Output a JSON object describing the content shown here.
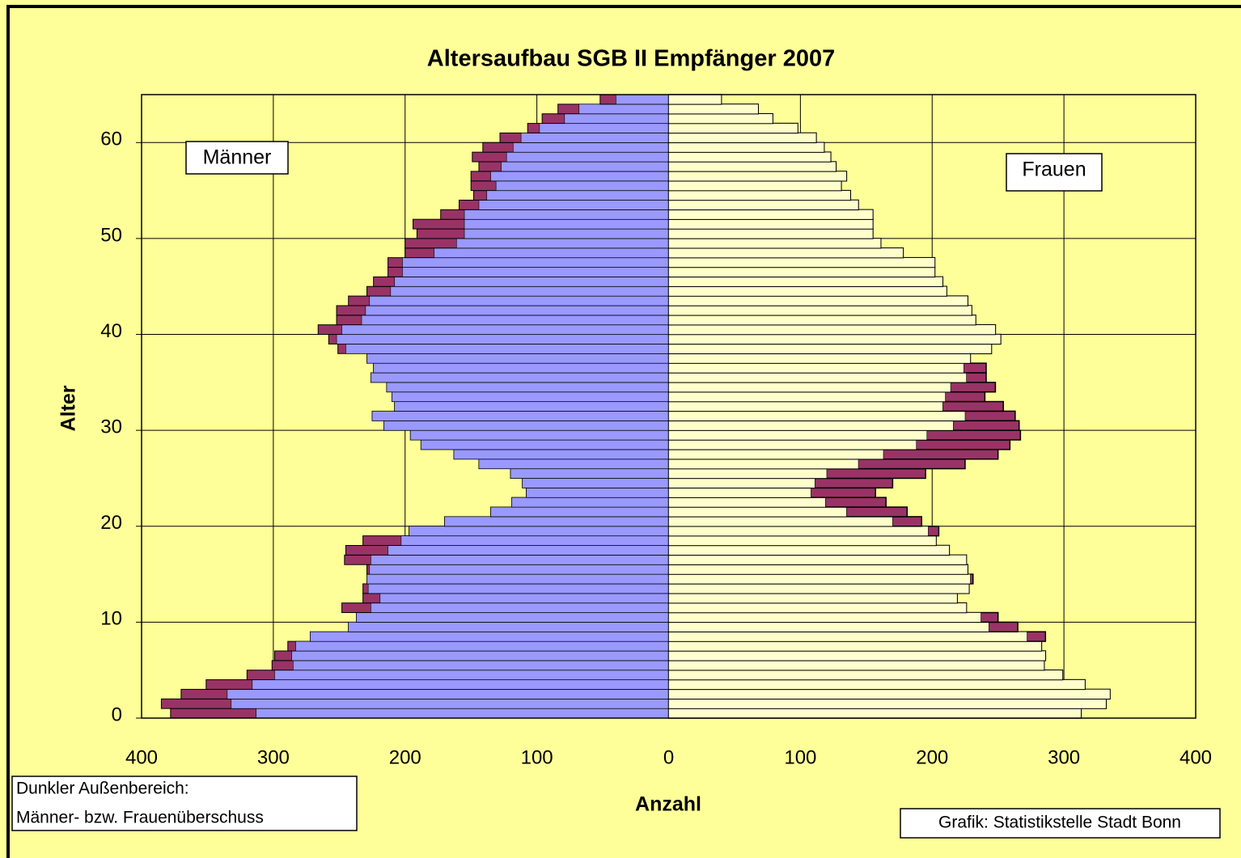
{
  "chart_data": {
    "type": "pyramid",
    "title": "Altersaufbau SGB II Empfänger 2007",
    "xlabel": "Anzahl",
    "ylabel": "Alter",
    "y": [
      0,
      1,
      2,
      3,
      4,
      5,
      6,
      7,
      8,
      9,
      10,
      11,
      12,
      13,
      14,
      15,
      16,
      17,
      18,
      19,
      20,
      21,
      22,
      23,
      24,
      25,
      26,
      27,
      28,
      29,
      30,
      31,
      32,
      33,
      34,
      35,
      36,
      37,
      38,
      39,
      40,
      41,
      42,
      43,
      44,
      45,
      46,
      47,
      48,
      49,
      50,
      51,
      52,
      53,
      54,
      55,
      56,
      57,
      58,
      59,
      60,
      61,
      62,
      63,
      64
    ],
    "series": [
      {
        "name": "Männer",
        "color": "#9999ff",
        "values": [
          378,
          385,
          370,
          351,
          320,
          301,
          299,
          289,
          272,
          243,
          237,
          248,
          232,
          232,
          229,
          229,
          246,
          245,
          232,
          197,
          170,
          135,
          119,
          108,
          111,
          120,
          144,
          163,
          188,
          196,
          216,
          225,
          208,
          210,
          214,
          226,
          224,
          229,
          251,
          258,
          266,
          252,
          252,
          243,
          229,
          224,
          213,
          213,
          200,
          200,
          191,
          194,
          173,
          159,
          148,
          150,
          150,
          144,
          149,
          141,
          128,
          107,
          96,
          84,
          52
        ]
      },
      {
        "name": "Frauen",
        "color": "#ffffcc",
        "values": [
          313,
          332,
          335,
          316,
          299,
          285,
          286,
          283,
          286,
          265,
          250,
          226,
          219,
          228,
          231,
          227,
          226,
          213,
          203,
          205,
          192,
          181,
          165,
          157,
          170,
          195,
          225,
          250,
          259,
          267,
          266,
          263,
          254,
          240,
          248,
          241,
          241,
          229,
          245,
          252,
          248,
          233,
          230,
          227,
          211,
          208,
          202,
          202,
          178,
          161,
          155,
          155,
          155,
          144,
          138,
          131,
          135,
          127,
          123,
          118,
          112,
          98,
          79,
          68,
          40
        ]
      }
    ],
    "surplus_color": "#993366",
    "xlim": [
      -400,
      400
    ],
    "xticks": [
      {
        "value": -400,
        "label": "400"
      },
      {
        "value": -300,
        "label": "300"
      },
      {
        "value": -200,
        "label": "200"
      },
      {
        "value": -100,
        "label": "100"
      },
      0,
      100,
      200,
      300,
      400
    ],
    "ylim": [
      0,
      65
    ],
    "yticks": [
      0,
      10,
      20,
      30,
      40,
      50,
      60
    ],
    "grid": true,
    "note": [
      "Dunkler Außenbereich:",
      "Männer- bzw. Frauenüberschuss"
    ],
    "source": "Grafik: Statistikstelle Stadt Bonn"
  }
}
